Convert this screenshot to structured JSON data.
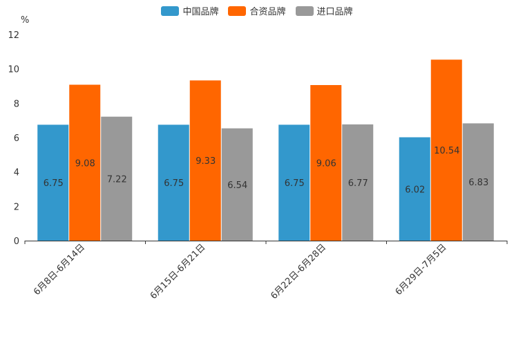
{
  "chart_data": {
    "type": "bar",
    "unit_label": "%",
    "categories": [
      "6月8日-6月14日",
      "6月15日-6月21日",
      "6月22日-6月28日",
      "6月29日-7月5日"
    ],
    "series": [
      {
        "name": "中国品牌",
        "color": "#3398cc",
        "values": [
          6.75,
          6.75,
          6.75,
          6.02
        ]
      },
      {
        "name": "合资品牌",
        "color": "#ff6600",
        "values": [
          9.08,
          9.33,
          9.06,
          10.54
        ]
      },
      {
        "name": "进口品牌",
        "color": "#999999",
        "values": [
          7.22,
          6.54,
          6.77,
          6.83
        ]
      }
    ],
    "ylim": [
      0,
      12
    ],
    "yticks": [
      0,
      2,
      4,
      6,
      8,
      10,
      12
    ],
    "legend_position": "top-center",
    "grid": false
  }
}
